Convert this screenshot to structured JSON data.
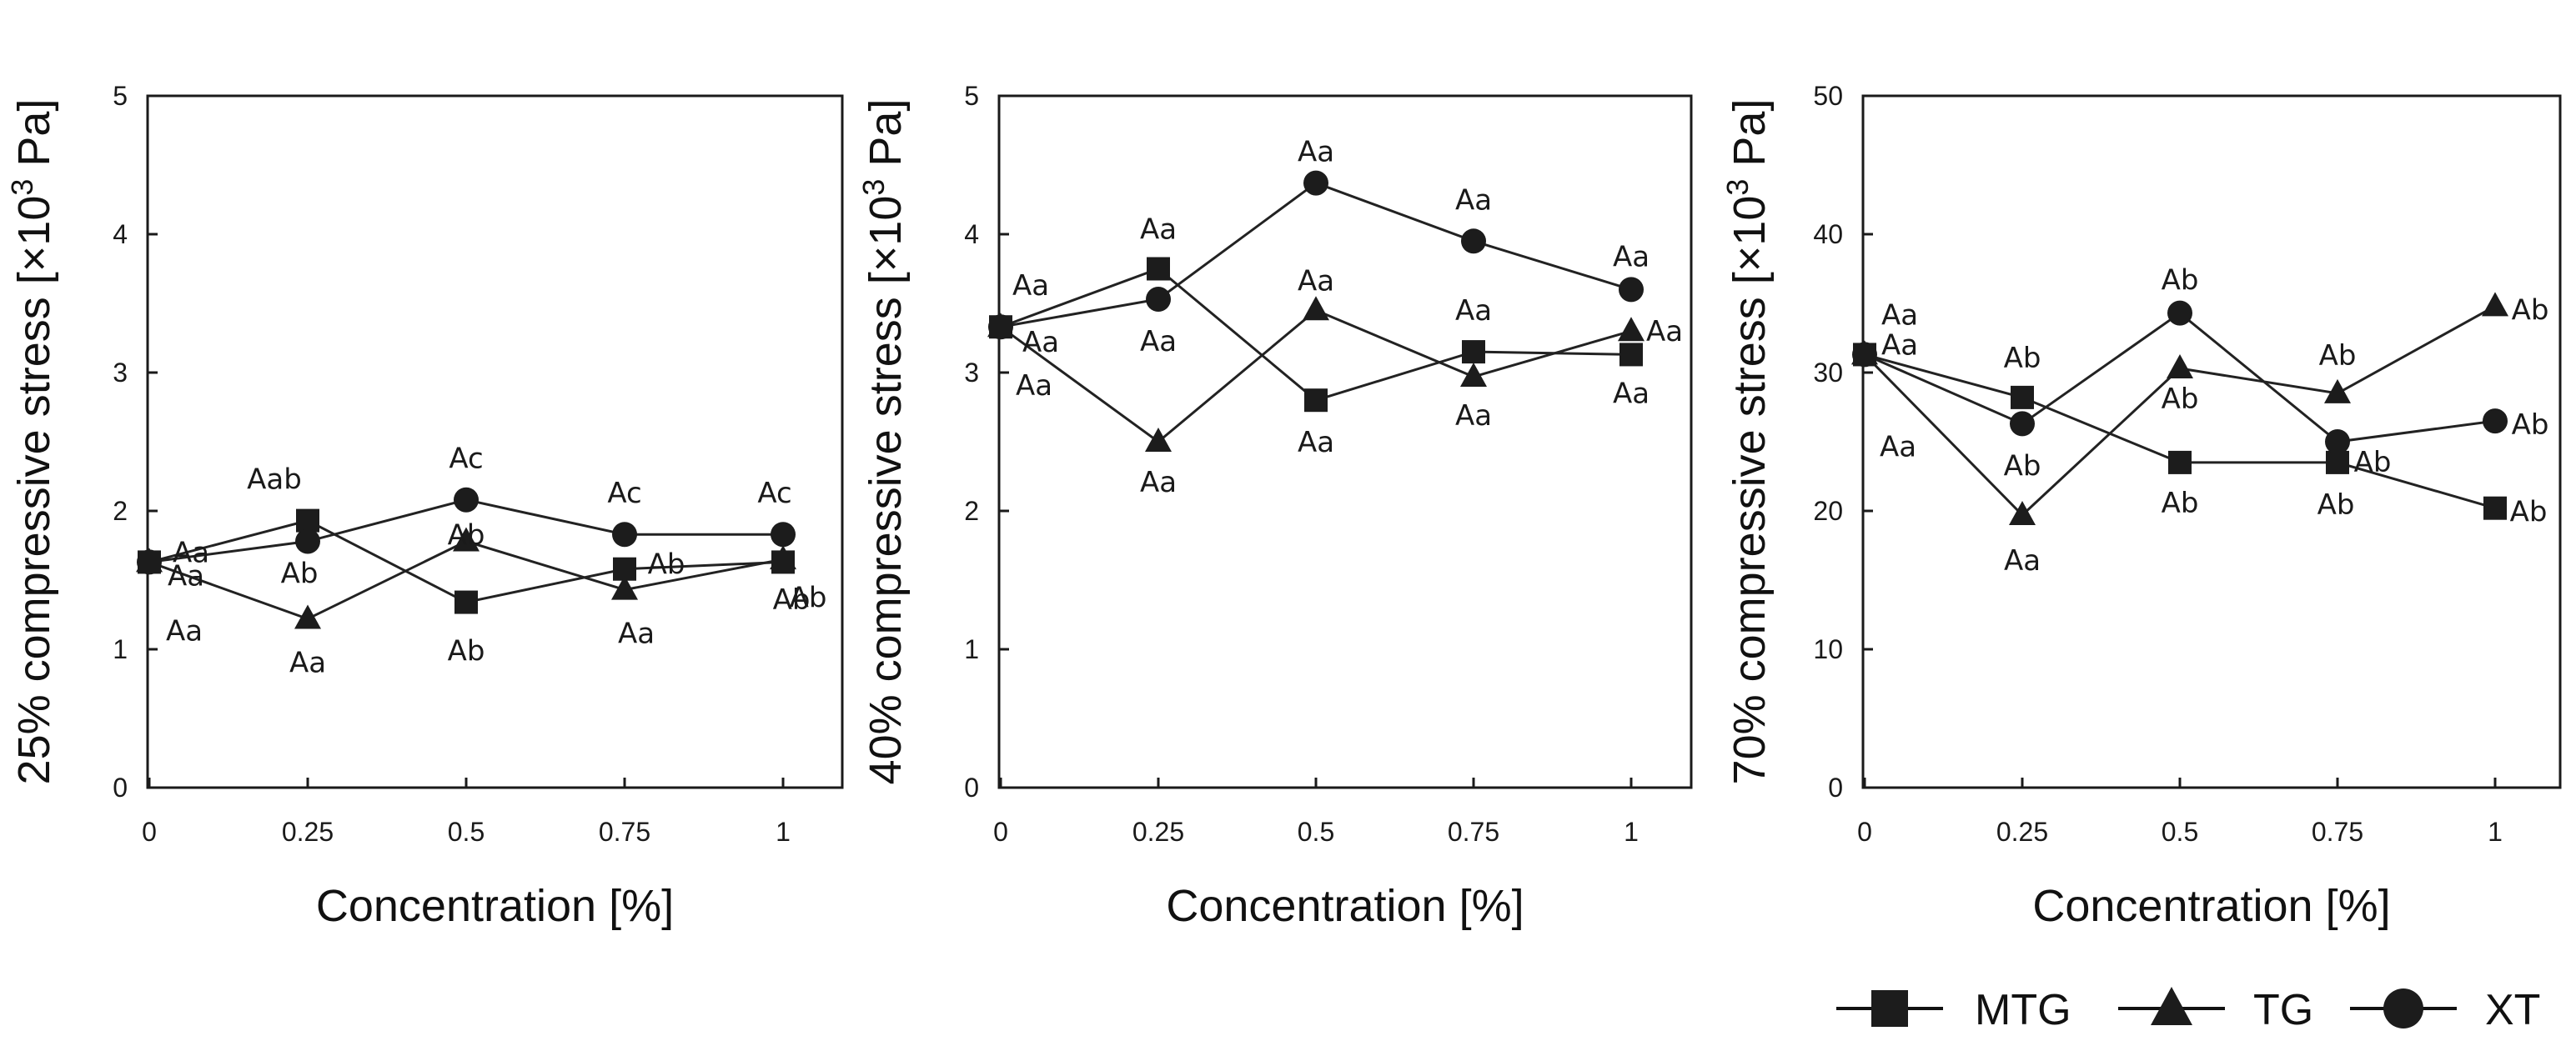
{
  "legend": [
    {
      "name": "MTG",
      "marker": "square"
    },
    {
      "name": "TG",
      "marker": "triangle"
    },
    {
      "name": "XT",
      "marker": "circle"
    }
  ],
  "chart_data": [
    {
      "type": "line",
      "title": "",
      "xlabel": "Concentration [%]",
      "ylabel_prefix": "25% compressive stress [×10",
      "ylabel_exp": "3",
      "ylabel_suffix": " Pa]",
      "x": [
        0,
        0.25,
        0.5,
        0.75,
        1
      ],
      "xtick_labels": [
        "0",
        "0.25",
        "0.5",
        "0.75",
        "1"
      ],
      "ylim": [
        0,
        5
      ],
      "ytick_labels": [
        "0",
        "1",
        "2",
        "3",
        "4",
        "5"
      ],
      "series": [
        {
          "name": "MTG",
          "marker": "square",
          "values": [
            1.63,
            1.93,
            1.34,
            1.58,
            1.63
          ],
          "labels": [
            "Aa",
            "Aab",
            "Ab",
            "Ab",
            "Ab"
          ]
        },
        {
          "name": "TG",
          "marker": "triangle",
          "values": [
            1.63,
            1.22,
            1.78,
            1.43,
            1.65
          ],
          "labels": [
            "Aa",
            "Aa",
            "Ab",
            "Aa",
            "Ab"
          ]
        },
        {
          "name": "XT",
          "marker": "circle",
          "values": [
            1.63,
            1.78,
            2.08,
            1.83,
            1.83
          ],
          "labels": [
            "Aa",
            "Ab",
            "Ac",
            "Ac",
            "Ac"
          ]
        }
      ]
    },
    {
      "type": "line",
      "title": "",
      "xlabel": "Concentration [%]",
      "ylabel_prefix": "40% compressive stress [×10",
      "ylabel_exp": "3",
      "ylabel_suffix": " Pa]",
      "x": [
        0,
        0.25,
        0.5,
        0.75,
        1
      ],
      "xtick_labels": [
        "0",
        "0.25",
        "0.5",
        "0.75",
        "1"
      ],
      "ylim": [
        0,
        5
      ],
      "ytick_labels": [
        "0",
        "1",
        "2",
        "3",
        "4",
        "5"
      ],
      "series": [
        {
          "name": "MTG",
          "marker": "square",
          "values": [
            3.33,
            3.75,
            2.8,
            3.15,
            3.13
          ],
          "labels": [
            "Aa",
            "Aa",
            "Aa",
            "Aa",
            "Aa"
          ]
        },
        {
          "name": "TG",
          "marker": "triangle",
          "values": [
            3.33,
            2.5,
            3.45,
            2.97,
            3.3
          ],
          "labels": [
            "Aa",
            "Aa",
            "Aa",
            "Aa",
            "Aa"
          ]
        },
        {
          "name": "XT",
          "marker": "circle",
          "values": [
            3.33,
            3.53,
            4.37,
            3.95,
            3.6
          ],
          "labels": [
            "Aa",
            "Aa",
            "Aa",
            "Aa",
            "Aa"
          ]
        }
      ]
    },
    {
      "type": "line",
      "title": "",
      "xlabel": "Concentration [%]",
      "ylabel_prefix": "70% compressive stress [×10",
      "ylabel_exp": "3",
      "ylabel_suffix": " Pa]",
      "x": [
        0,
        0.25,
        0.5,
        0.75,
        1
      ],
      "xtick_labels": [
        "0",
        "0.25",
        "0.5",
        "0.75",
        "1"
      ],
      "ylim": [
        0,
        50
      ],
      "ytick_labels": [
        "0",
        "10",
        "20",
        "30",
        "40",
        "50"
      ],
      "series": [
        {
          "name": "MTG",
          "marker": "square",
          "values": [
            31.3,
            28.2,
            23.5,
            23.5,
            20.2
          ],
          "labels": [
            "Aa",
            "Ab",
            "Ab",
            "Ab",
            "Ab"
          ]
        },
        {
          "name": "TG",
          "marker": "triangle",
          "values": [
            31.3,
            19.7,
            30.3,
            28.5,
            34.8
          ],
          "labels": [
            "Aa",
            "Aa",
            "Ab",
            "Ab",
            "Ab"
          ]
        },
        {
          "name": "XT",
          "marker": "circle",
          "values": [
            31.3,
            26.3,
            34.3,
            25.0,
            26.5
          ],
          "labels": [
            "Aa",
            "Ab",
            "Ab",
            "Ab",
            "Ab"
          ]
        }
      ]
    }
  ]
}
